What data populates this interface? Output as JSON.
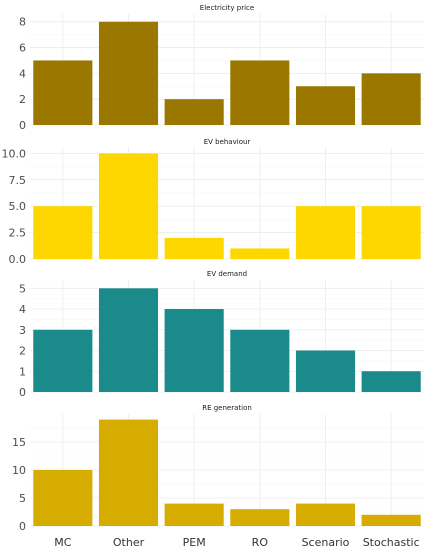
{
  "chart_data": {
    "type": "bar",
    "layout": "faceted-vertical",
    "grid": true,
    "legend": "none",
    "categories": [
      "MC",
      "Other",
      "PEM",
      "RO",
      "Scenario",
      "Stochastic"
    ],
    "panels": [
      {
        "title": "Electricity price",
        "color": "#9a7800",
        "values": [
          5,
          8,
          2,
          5,
          3,
          4
        ],
        "ylim": [
          0,
          8.6
        ],
        "yticks": [
          0,
          2,
          4,
          6,
          8
        ],
        "ytick_labels": [
          "0",
          "2",
          "4",
          "6",
          "8"
        ]
      },
      {
        "title": "EV behaviour",
        "color": "#ffd700",
        "values": [
          5,
          10,
          2,
          1,
          5,
          5
        ],
        "ylim": [
          0,
          10.6
        ],
        "yticks": [
          0,
          2.5,
          5,
          7.5,
          10
        ],
        "ytick_labels": [
          "0.0",
          "2.5",
          "5.0",
          "7.5",
          "10.0"
        ]
      },
      {
        "title": "EV demand",
        "color": "#1b8a8a",
        "values": [
          3,
          5,
          4,
          3,
          2,
          1
        ],
        "ylim": [
          0,
          5.4
        ],
        "yticks": [
          0,
          1,
          2,
          3,
          4,
          5
        ],
        "ytick_labels": [
          "0",
          "1",
          "2",
          "3",
          "4",
          "5"
        ]
      },
      {
        "title": "RE generation",
        "color": "#d6ac00",
        "values": [
          10,
          19,
          4,
          3,
          4,
          2
        ],
        "ylim": [
          0,
          20
        ],
        "yticks": [
          0,
          5,
          10,
          15
        ],
        "ytick_labels": [
          "0",
          "5",
          "10",
          "15"
        ]
      }
    ]
  }
}
